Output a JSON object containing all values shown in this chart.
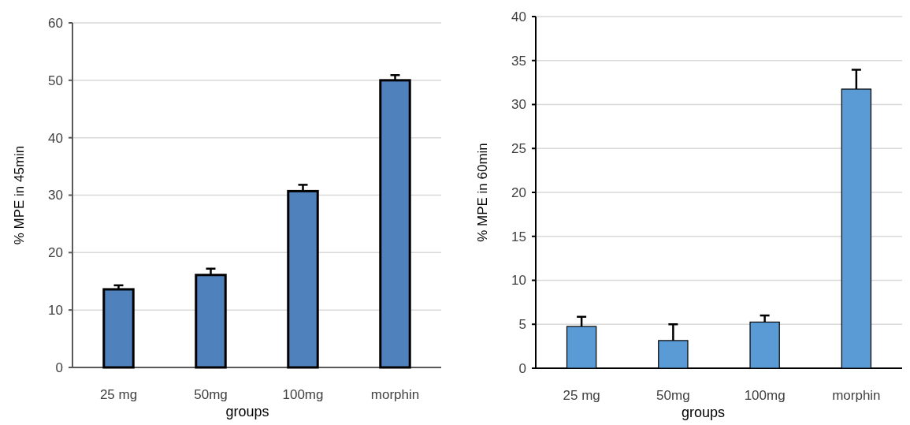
{
  "chart_data": [
    {
      "type": "bar",
      "categories": [
        "25 mg",
        "50mg",
        "100mg",
        "morphin"
      ],
      "values": [
        13.6,
        16.1,
        30.7,
        50.0
      ],
      "errors": [
        [
          13.6,
          14.3
        ],
        [
          16.1,
          17.2
        ],
        [
          30.7,
          31.8
        ],
        [
          50.0,
          50.9
        ]
      ],
      "color": "#4f81bd",
      "xlabel": "groups",
      "ylabel": "% MPE in 45min",
      "ylim": [
        0,
        60
      ],
      "yticks": [
        0,
        10,
        20,
        30,
        40,
        50,
        60
      ],
      "grid": "y"
    },
    {
      "type": "bar",
      "categories": [
        "25 mg",
        "50mg",
        "100mg",
        "morphin"
      ],
      "values": [
        4.75,
        3.15,
        5.25,
        31.75
      ],
      "errors": [
        [
          4.75,
          5.85
        ],
        [
          3.15,
          5.0
        ],
        [
          5.25,
          6.0
        ],
        [
          31.75,
          33.95
        ]
      ],
      "color": "#5b9bd5",
      "xlabel": "groups",
      "ylabel": "% MPE in 60min",
      "ylim": [
        0,
        40
      ],
      "yticks": [
        0,
        5,
        10,
        15,
        20,
        25,
        30,
        35,
        40
      ],
      "grid": "y"
    }
  ]
}
